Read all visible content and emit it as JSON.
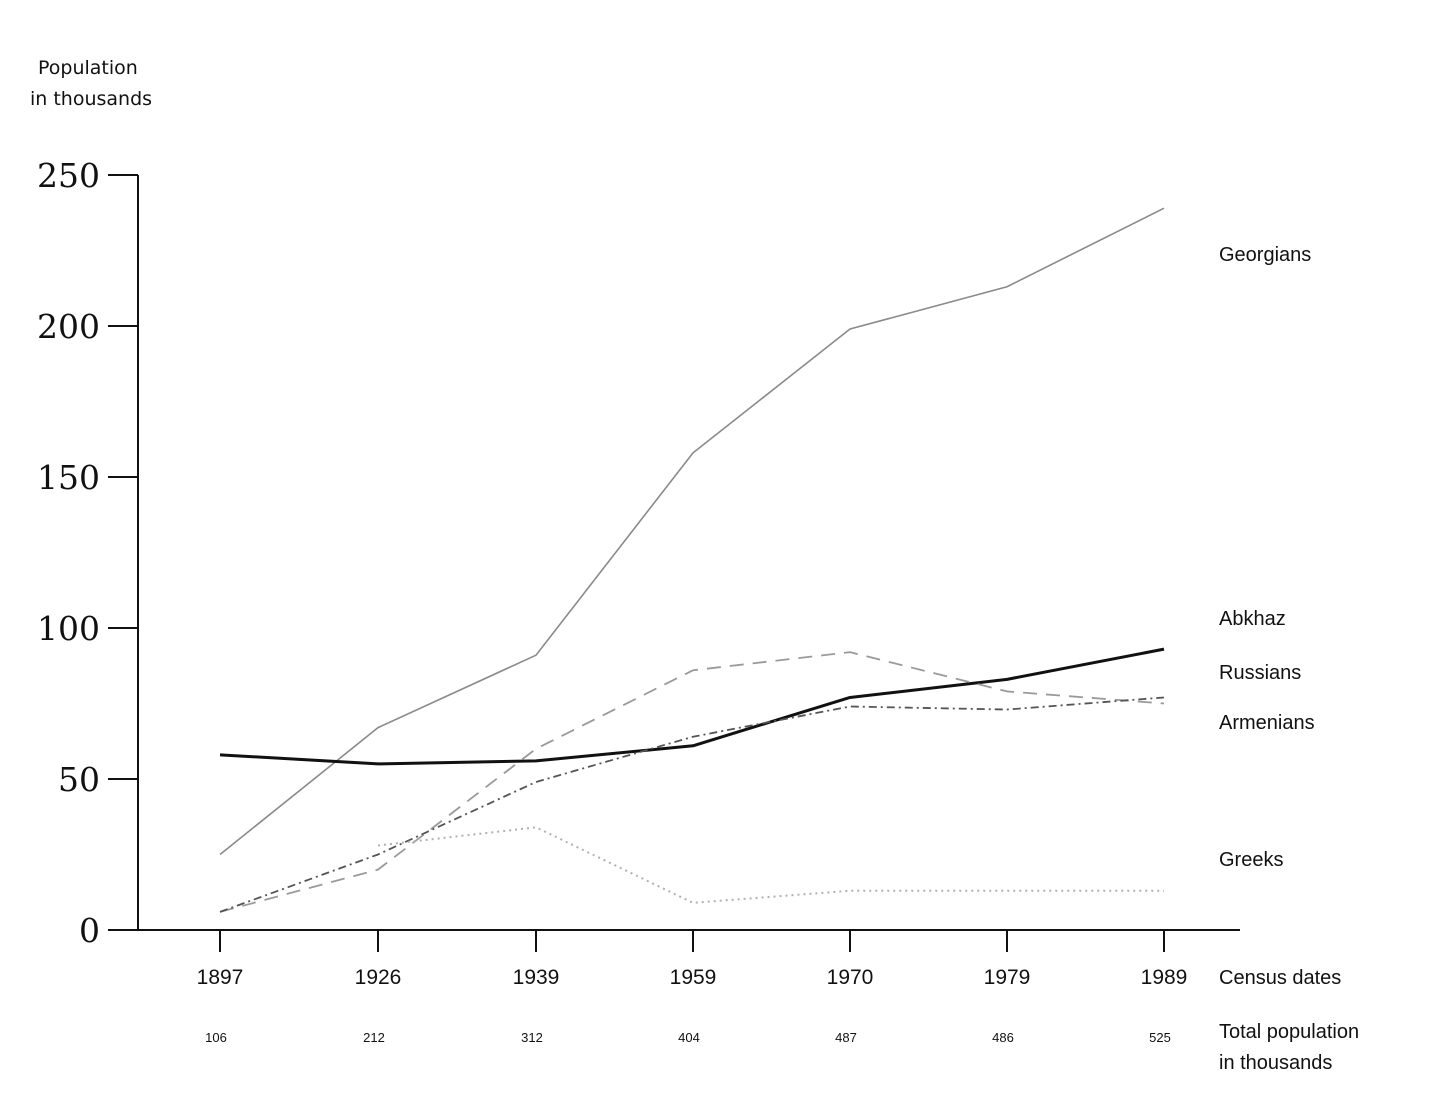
{
  "chart_data": {
    "type": "line",
    "y_title": [
      "Population",
      "in thousands"
    ],
    "x": [
      "1897",
      "1926",
      "1939",
      "1959",
      "1970",
      "1979",
      "1989"
    ],
    "x_title": "Census dates",
    "totals_title": [
      "Total population",
      "in thousands"
    ],
    "totals": [
      "106",
      "212",
      "312",
      "404",
      "487",
      "486",
      "525"
    ],
    "ylim": [
      0,
      250
    ],
    "yticks": [
      "0",
      "50",
      "100",
      "150",
      "200",
      "250"
    ],
    "grid": false,
    "series": [
      {
        "name": "Georgians",
        "values": [
          25,
          67,
          91,
          158,
          199,
          213,
          239
        ],
        "color": "#8a8a8a",
        "style": "solid-thin"
      },
      {
        "name": "Abkhaz",
        "values": [
          58,
          55,
          56,
          61,
          77,
          83,
          93
        ],
        "color": "#111111",
        "style": "solid-bold"
      },
      {
        "name": "Russians",
        "values": [
          6,
          20,
          60,
          86,
          92,
          79,
          75
        ],
        "color": "#9a9a9a",
        "style": "dashed"
      },
      {
        "name": "Armenians",
        "values": [
          6,
          25,
          49,
          64,
          74,
          73,
          77
        ],
        "color": "#555555",
        "style": "dash-dot"
      },
      {
        "name": "Greeks",
        "values": [
          null,
          28,
          34,
          9,
          13,
          13,
          13
        ],
        "color": "#b0b0b0",
        "style": "dotted"
      }
    ]
  }
}
